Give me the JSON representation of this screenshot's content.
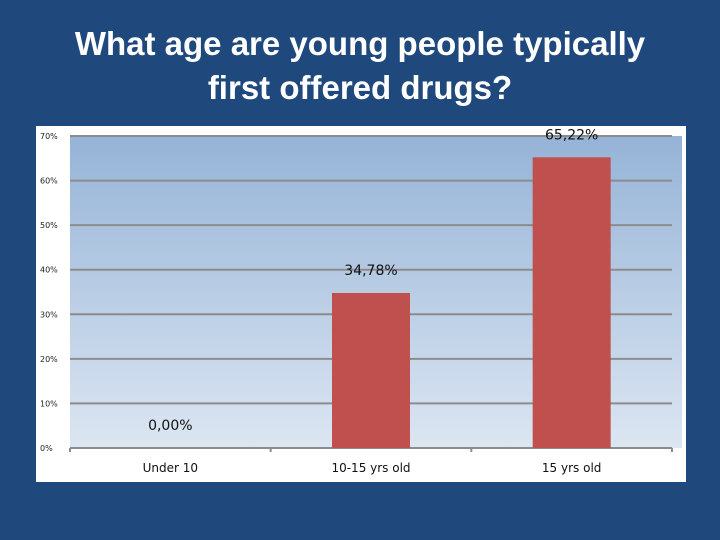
{
  "slide": {
    "title_line1": "What age are young people typically",
    "title_line2": "first offered drugs?"
  },
  "colors": {
    "slide_background": "#1f497d",
    "bar": "#c0504d",
    "plot_top": "#95b3d7",
    "plot_bottom": "#dce6f2"
  },
  "chart_data": {
    "type": "bar",
    "title": "What age are young people typically first offered drugs?",
    "categories": [
      "Under 10",
      "10-15 yrs old",
      "15 yrs old"
    ],
    "values": [
      0.0,
      34.78,
      65.22
    ],
    "data_labels": [
      "0,00%",
      "34,78%",
      "65,22%"
    ],
    "ylim": [
      0,
      70
    ],
    "yticks": [
      0,
      10,
      20,
      30,
      40,
      50,
      60,
      70
    ],
    "ytick_labels": [
      "0%",
      "10%",
      "20%",
      "30%",
      "40%",
      "50%",
      "60%",
      "70%"
    ],
    "xlabel": "",
    "ylabel": "",
    "grid": true,
    "legend": "none"
  }
}
